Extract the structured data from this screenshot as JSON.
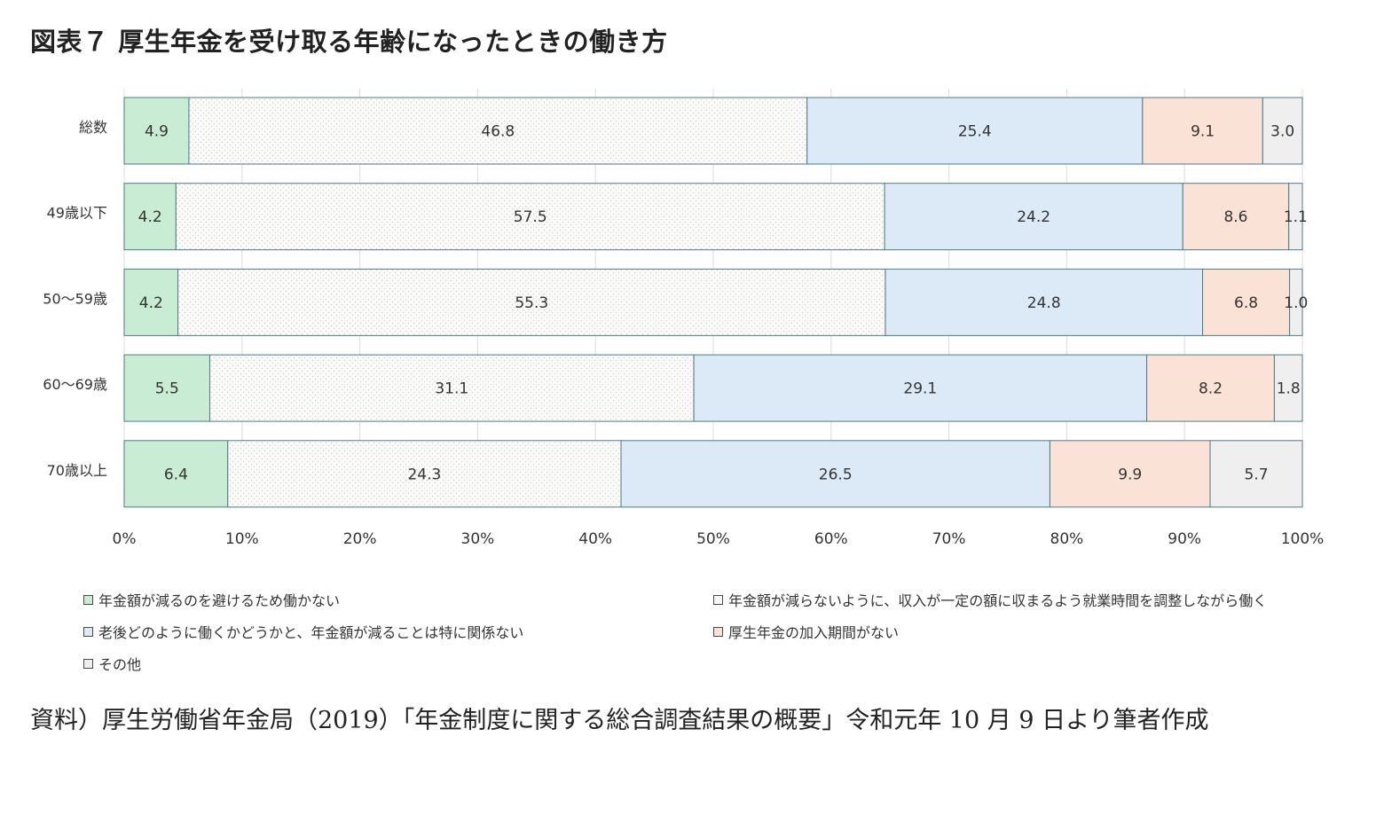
{
  "title": "図表７ 厚生年金を受け取る年齢になったときの働き方",
  "source_text": "資料）厚生労働省年金局（2019）「年金制度に関する総合調査結果の概要」令和元年 10 月 9 日より筆者作成",
  "chart_data": {
    "type": "bar",
    "orientation": "horizontal",
    "stacked": true,
    "percent_stacked": true,
    "categories": [
      "総数",
      "49歳以下",
      "50～59歳",
      "60～69歳",
      "70歳以上"
    ],
    "series": [
      {
        "name": "年金額が減るのを避けるため働かない",
        "color": "#c9ecd4",
        "values": [
          4.9,
          4.2,
          4.2,
          5.5,
          6.4
        ]
      },
      {
        "name": "年金額が減らないように、収入が一定の額に収まるよう就業時間を調整しながら働く",
        "color": "#f6f6f4",
        "values": [
          46.8,
          57.5,
          55.3,
          31.1,
          24.3
        ]
      },
      {
        "name": "老後どのように働くかどうかと、年金額が減ることは特に関係ない",
        "color": "#dce9f7",
        "values": [
          25.4,
          24.2,
          24.8,
          29.1,
          26.5
        ]
      },
      {
        "name": "厚生年金の加入期間がない",
        "color": "#fae2d6",
        "values": [
          9.1,
          8.6,
          6.8,
          8.2,
          9.9
        ]
      },
      {
        "name": "その他",
        "color": "#efefef",
        "values": [
          3.0,
          1.1,
          1.0,
          1.8,
          5.7
        ]
      }
    ],
    "x_ticks": [
      "0%",
      "10%",
      "20%",
      "30%",
      "40%",
      "50%",
      "60%",
      "70%",
      "80%",
      "90%",
      "100%"
    ],
    "xlim": [
      0,
      100
    ],
    "grid": "vertical",
    "legend_position": "bottom"
  }
}
